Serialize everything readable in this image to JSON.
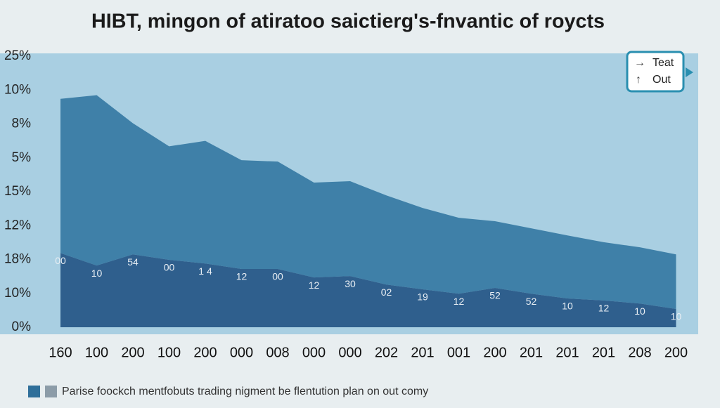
{
  "chart_data": {
    "type": "stacked-area",
    "title": "HIBT, mingon of atiratoo saictierg's-fnvantic of roycts",
    "caption": "Parise foockch mentfobuts trading nigment be flentution plan on out comy",
    "categories": [
      "160",
      "100",
      "200",
      "100",
      "200",
      "000",
      "008",
      "000",
      "000",
      "202",
      "201",
      "001",
      "200",
      "201",
      "201",
      "201",
      "208",
      "200"
    ],
    "annotations": [
      "00",
      "10",
      "54",
      "00",
      "1 4",
      "12",
      "00",
      "12",
      "30",
      "02",
      "19",
      "12",
      "52",
      "52",
      "10",
      "12",
      "10",
      "10"
    ],
    "ylim": [
      0,
      8
    ],
    "yticks": [
      {
        "value": 0,
        "label": "0%"
      },
      {
        "value": 1,
        "label": "10%"
      },
      {
        "value": 2,
        "label": "18%"
      },
      {
        "value": 3,
        "label": "12%"
      },
      {
        "value": 4,
        "label": "15%"
      },
      {
        "value": 5,
        "label": "5%"
      },
      {
        "value": 6,
        "label": "8%"
      },
      {
        "value": 7,
        "label": "10%"
      },
      {
        "value": 8,
        "label": "25%"
      }
    ],
    "series": [
      {
        "name": "Out",
        "color": "#2f5f8d",
        "values": [
          2.19,
          1.82,
          2.15,
          1.99,
          1.88,
          1.72,
          1.72,
          1.47,
          1.51,
          1.26,
          1.12,
          0.99,
          1.16,
          0.99,
          0.85,
          0.79,
          0.7,
          0.54
        ]
      },
      {
        "name": "Teat",
        "color": "#3f80a8",
        "values": [
          4.55,
          5.03,
          3.87,
          3.35,
          3.62,
          3.21,
          3.17,
          2.8,
          2.8,
          2.63,
          2.4,
          2.24,
          1.97,
          1.93,
          1.86,
          1.72,
          1.66,
          1.61
        ]
      }
    ]
  }
}
